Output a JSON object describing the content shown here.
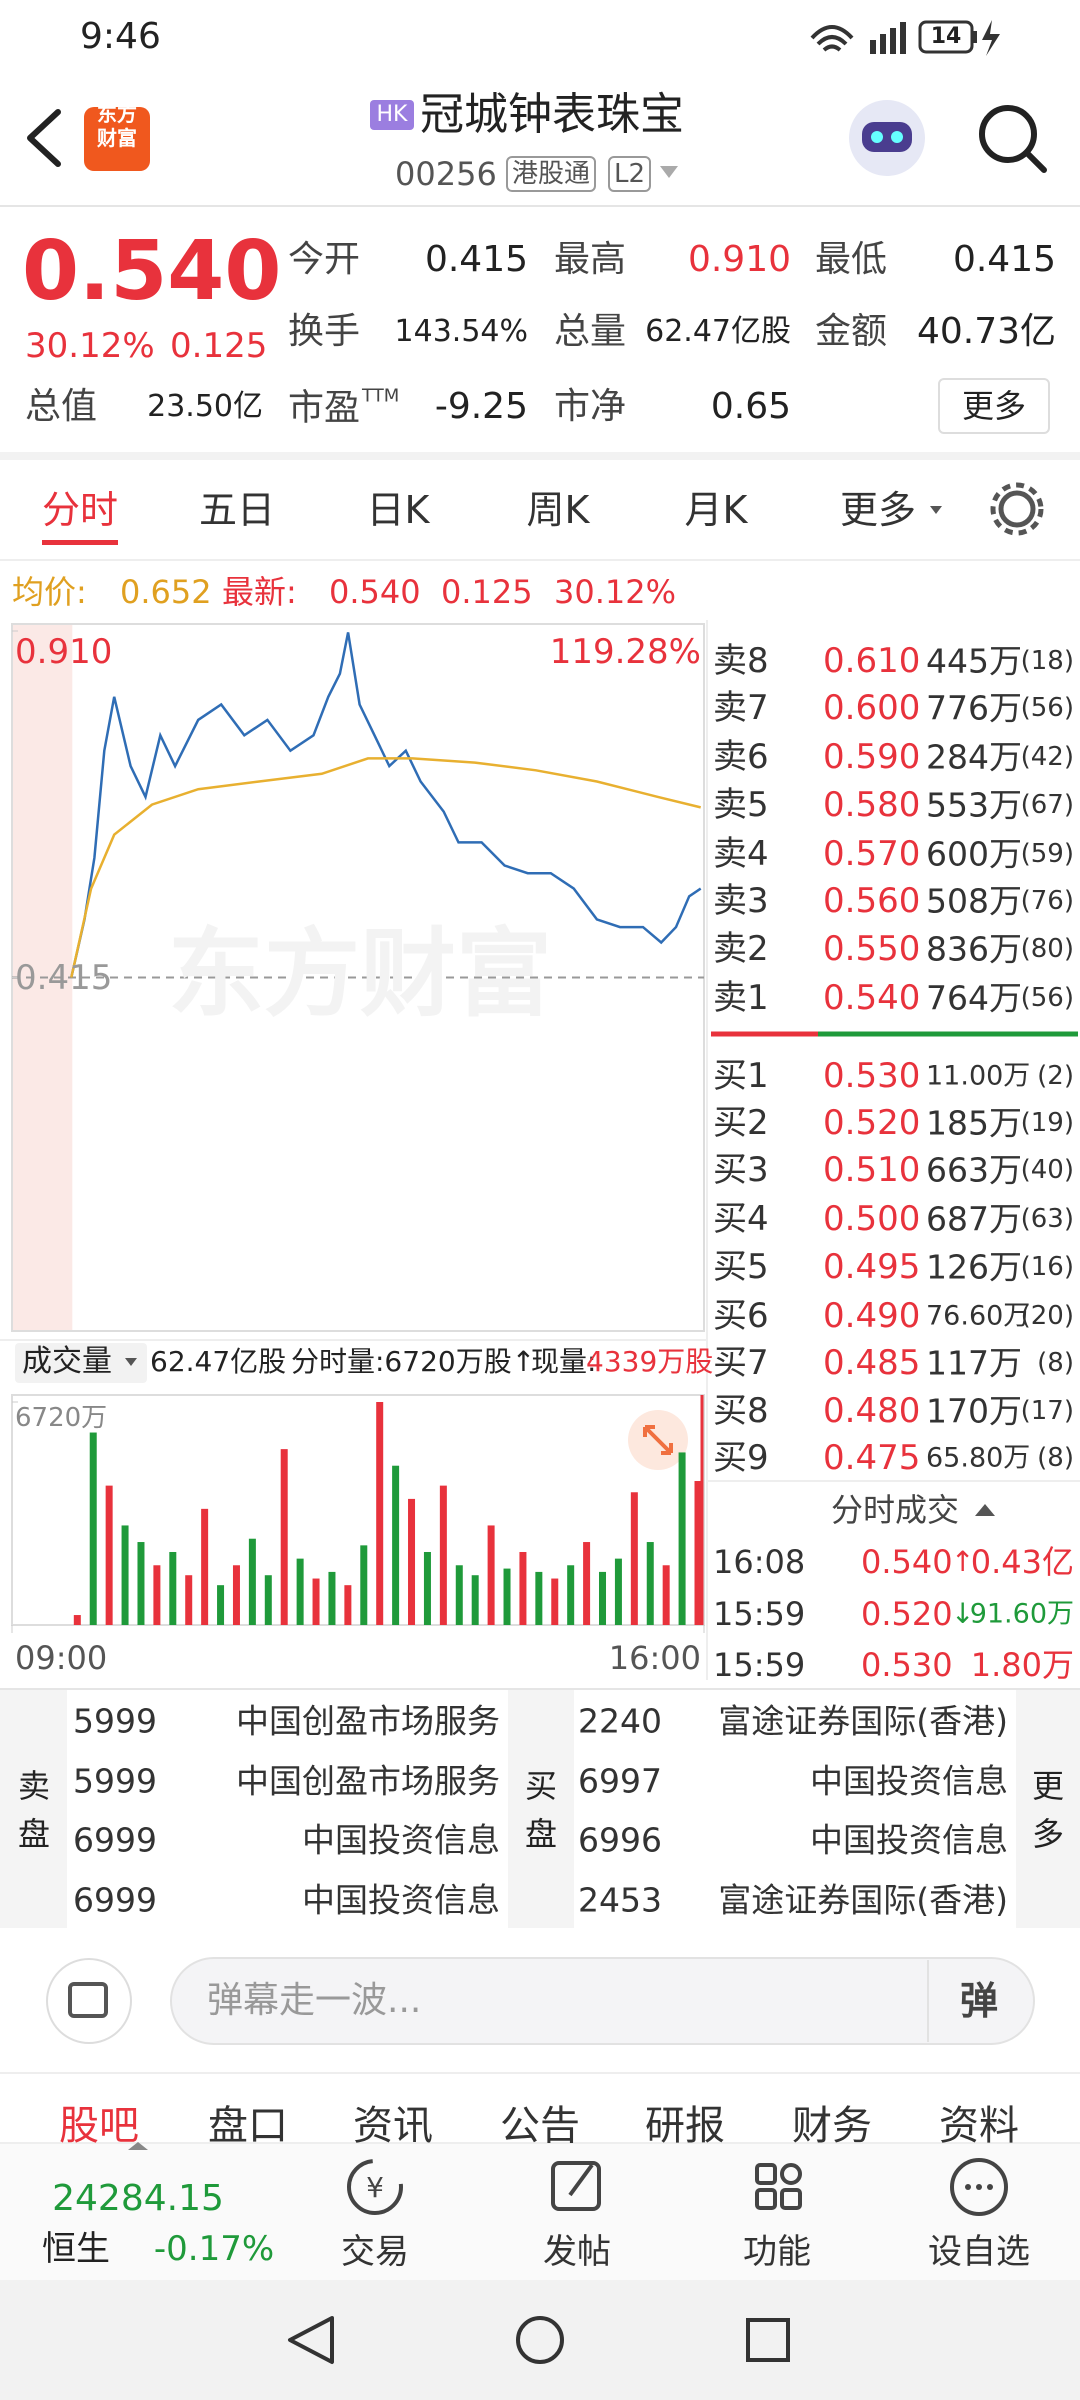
{
  "status": {
    "time": "9:46",
    "battery": "14"
  },
  "header": {
    "logo": "东方财富",
    "market": "HK",
    "name": "冠城钟表珠宝",
    "code": "00256",
    "tag": "港股通",
    "level": "L2"
  },
  "quote": {
    "price": "0.540",
    "change_pct": "30.12%",
    "change": "0.125",
    "stats": [
      {
        "label": "今开",
        "value": "0.415"
      },
      {
        "label": "最高",
        "value": "0.910",
        "color": "red"
      },
      {
        "label": "最低",
        "value": "0.415"
      },
      {
        "label": "换手",
        "value": "143.54%"
      },
      {
        "label": "总量",
        "value": "62.47亿股"
      },
      {
        "label": "金额",
        "value": "40.73亿"
      },
      {
        "label": "总值",
        "value": "23.50亿"
      },
      {
        "label": "市盈",
        "sup": "TTM",
        "value": "-9.25"
      },
      {
        "label": "市净",
        "value": "0.65"
      }
    ],
    "more": "更多"
  },
  "tabs": [
    "分时",
    "五日",
    "日K",
    "周K",
    "月K",
    "更多"
  ],
  "info": {
    "avg_label": "均价:",
    "avg": "0.652",
    "latest_label": "最新:",
    "latest": "0.540",
    "change": "0.125",
    "pct": "30.12%"
  },
  "chart": {
    "type": "line",
    "watermark": "东方财富",
    "high_pct": "119.28%",
    "xlim": [
      0,
      420
    ],
    "xticks": [
      {
        "value": 0,
        "label": "09:00"
      },
      {
        "value": 420,
        "label": "16:00"
      }
    ],
    "ylim": [
      -0.09,
      0.92
    ],
    "yticks": [
      {
        "value": 0.91,
        "label": "0.910"
      },
      {
        "value": 0.415,
        "label": "0.415"
      }
    ],
    "prev_close": 0.415,
    "premarket_end": 36,
    "series": [
      {
        "color": "#2f6db5",
        "x": [
          36,
          44,
          50,
          56,
          62,
          72,
          81,
          90,
          99,
          113,
          127,
          141,
          155,
          169,
          183,
          192,
          199,
          204,
          211,
          220,
          229,
          239,
          248,
          262,
          271,
          285,
          299,
          313,
          327,
          341,
          355,
          369,
          383,
          394,
          403,
          411,
          418
        ],
        "values": [
          0.415,
          0.498,
          0.586,
          0.739,
          0.816,
          0.717,
          0.673,
          0.761,
          0.717,
          0.783,
          0.805,
          0.761,
          0.783,
          0.739,
          0.761,
          0.816,
          0.849,
          0.908,
          0.805,
          0.761,
          0.717,
          0.739,
          0.695,
          0.652,
          0.608,
          0.608,
          0.575,
          0.564,
          0.564,
          0.542,
          0.498,
          0.487,
          0.487,
          0.465,
          0.487,
          0.531,
          0.542
        ]
      },
      {
        "color": "#e8b030",
        "x": [
          36,
          48,
          62,
          85,
          113,
          150,
          188,
          216,
          243,
          281,
          318,
          355,
          392,
          418
        ],
        "values": [
          0.415,
          0.542,
          0.619,
          0.662,
          0.684,
          0.695,
          0.706,
          0.728,
          0.728,
          0.722,
          0.711,
          0.695,
          0.673,
          0.658
        ]
      }
    ]
  },
  "volume": {
    "type": "bar",
    "label": "成交量",
    "total": "62.47亿股",
    "period": "分时量:6720万股↑",
    "now_label": "现量:",
    "now": "4339万股",
    "ylim": [
      0,
      6720
    ],
    "yticks": [
      {
        "value": 6720,
        "label": "6720万"
      }
    ],
    "values": [
      300,
      5800,
      4200,
      3000,
      2500,
      1800,
      2200,
      1500,
      3500,
      1200,
      1800,
      2600,
      1500,
      5300,
      2000,
      1400,
      1600,
      1200,
      2400,
      6720,
      4800,
      3800,
      2200,
      4200,
      1800,
      1500,
      3000,
      1700,
      2200,
      1600,
      1400,
      1800,
      2500,
      1600,
      2000,
      4000,
      2500,
      1800,
      5200,
      4339
    ],
    "colors": [
      "#e8323c",
      "#1f9a3a",
      "#e8323c",
      "#1f9a3a",
      "#1f9a3a",
      "#e8323c",
      "#1f9a3a",
      "#e8323c",
      "#e8323c",
      "#1f9a3a",
      "#e8323c",
      "#1f9a3a",
      "#1f9a3a",
      "#e8323c",
      "#1f9a3a",
      "#e8323c",
      "#1f9a3a",
      "#e8323c",
      "#1f9a3a",
      "#e8323c",
      "#1f9a3a",
      "#e8323c",
      "#1f9a3a",
      "#e8323c",
      "#1f9a3a",
      "#1f9a3a",
      "#e8323c",
      "#1f9a3a",
      "#e8323c",
      "#1f9a3a",
      "#e8323c",
      "#1f9a3a",
      "#e8323c",
      "#1f9a3a",
      "#1f9a3a",
      "#e8323c",
      "#1f9a3a",
      "#e8323c",
      "#1f9a3a",
      "#e8323c"
    ]
  },
  "order_book": {
    "asks": [
      {
        "label": "卖8",
        "price": "0.610",
        "volume": "445万",
        "count": "(18)"
      },
      {
        "label": "卖7",
        "price": "0.600",
        "volume": "776万",
        "count": "(56)"
      },
      {
        "label": "卖6",
        "price": "0.590",
        "volume": "284万",
        "count": "(42)"
      },
      {
        "label": "卖5",
        "price": "0.580",
        "volume": "553万",
        "count": "(67)"
      },
      {
        "label": "卖4",
        "price": "0.570",
        "volume": "600万",
        "count": "(59)"
      },
      {
        "label": "卖3",
        "price": "0.560",
        "volume": "508万",
        "count": "(76)"
      },
      {
        "label": "卖2",
        "price": "0.550",
        "volume": "836万",
        "count": "(80)"
      },
      {
        "label": "卖1",
        "price": "0.540",
        "volume": "764万",
        "count": "(56)"
      }
    ],
    "bids": [
      {
        "label": "买1",
        "price": "0.530",
        "volume": "11.00万",
        "count": "(2)"
      },
      {
        "label": "买2",
        "price": "0.520",
        "volume": "185万",
        "count": "(19)"
      },
      {
        "label": "买3",
        "price": "0.510",
        "volume": "663万",
        "count": "(40)"
      },
      {
        "label": "买4",
        "price": "0.500",
        "volume": "687万",
        "count": "(63)"
      },
      {
        "label": "买5",
        "price": "0.495",
        "volume": "126万",
        "count": "(16)"
      },
      {
        "label": "买6",
        "price": "0.490",
        "volume": "76.60万",
        "count": "(20)"
      },
      {
        "label": "买7",
        "price": "0.485",
        "volume": "117万",
        "count": "(8)"
      },
      {
        "label": "买8",
        "price": "0.480",
        "volume": "170万",
        "count": "(17)"
      },
      {
        "label": "买9",
        "price": "0.475",
        "volume": "65.80万",
        "count": "(8)"
      }
    ]
  },
  "trades": {
    "title": "分时成交",
    "rows": [
      {
        "time": "16:08",
        "price": "0.540",
        "arrow": "↑",
        "volume": "0.43亿",
        "side": "up"
      },
      {
        "time": "15:59",
        "price": "0.520",
        "arrow": "↓",
        "volume": "91.60万",
        "side": "down"
      },
      {
        "time": "15:59",
        "price": "0.530",
        "volume": "1.80万",
        "side": "up"
      }
    ]
  },
  "brokers": {
    "sell_label": "卖盘",
    "buy_label": "买盘",
    "more": "更多",
    "sell": [
      {
        "id": "5999",
        "name": "中国创盈市场服务"
      },
      {
        "id": "5999",
        "name": "中国创盈市场服务"
      },
      {
        "id": "6999",
        "name": "中国投资信息"
      },
      {
        "id": "6999",
        "name": "中国投资信息"
      }
    ],
    "buy": [
      {
        "id": "2240",
        "name": "富途证券国际(香港)"
      },
      {
        "id": "6997",
        "name": "中国投资信息"
      },
      {
        "id": "6996",
        "name": "中国投资信息"
      },
      {
        "id": "2453",
        "name": "富途证券国际(香港)"
      }
    ]
  },
  "comment": {
    "placeholder": "弹幕走一波...",
    "button": "弹"
  },
  "subtabs": [
    "股吧",
    "盘口",
    "资讯",
    "公告",
    "研报",
    "财务",
    "资料"
  ],
  "index": {
    "value": "24284.15",
    "name": "恒生",
    "change": "-0.17%"
  },
  "nav": [
    "交易",
    "发帖",
    "功能",
    "设自选"
  ]
}
